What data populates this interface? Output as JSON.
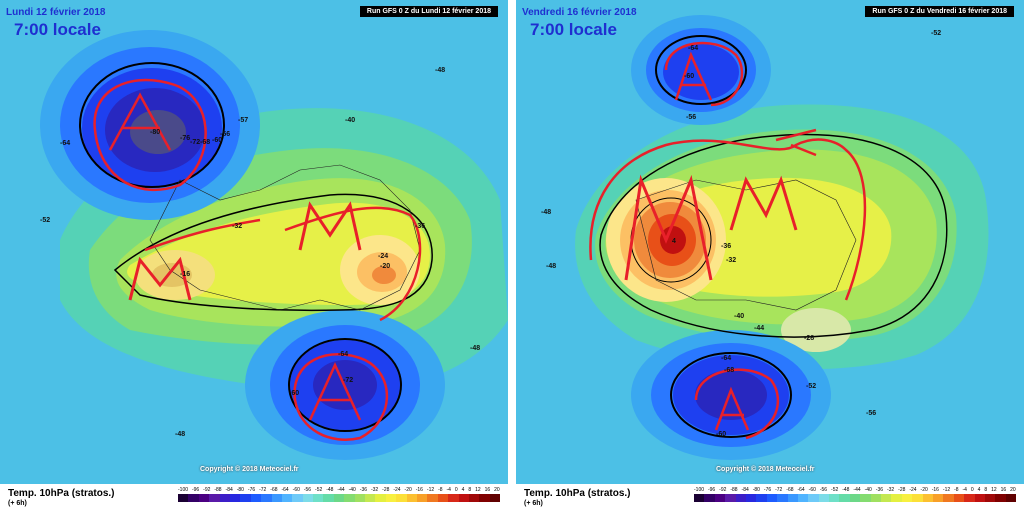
{
  "panels": [
    {
      "date": "Lundi 12 février 2018",
      "hour": "7:00 locale",
      "run": "Run GFS 0 Z du Lundi 12 février 2018",
      "labels": [
        "-80",
        "-76",
        "-72",
        "-68",
        "-60",
        "-64",
        "-57",
        "-56",
        "-52",
        "-48",
        "-48",
        "-48",
        "-40",
        "-36",
        "-32",
        "-24",
        "-20",
        "-16",
        "-64",
        "-72",
        "-60"
      ]
    },
    {
      "date": "Vendredi 16 février 2018",
      "hour": "7:00 locale",
      "run": "Run GFS 0 Z du Vendredi 16 février 2018",
      "labels": [
        "-64",
        "-60",
        "-56",
        "-52",
        "-48",
        "-44",
        "-40",
        "-36",
        "-32",
        "-28",
        "4",
        "-64",
        "-68",
        "-60",
        "-56",
        "-52",
        "-48"
      ]
    }
  ],
  "footer": {
    "param": "Temp. 10hPa (stratos.)",
    "step": "(+ 6h)",
    "copyright": "Copyright © 2018 Meteociel.fr"
  },
  "scale": {
    "ticks": [
      "-100",
      "-96",
      "-92",
      "-88",
      "-84",
      "-80",
      "-76",
      "-72",
      "-68",
      "-64",
      "-60",
      "-56",
      "-52",
      "-48",
      "-44",
      "-40",
      "-36",
      "-32",
      "-28",
      "-24",
      "-20",
      "-16",
      "-12",
      "-8",
      "-4",
      "0",
      "4",
      "8",
      "12",
      "16",
      "20"
    ],
    "colors": [
      "#1a0033",
      "#330066",
      "#4b0082",
      "#5a1aa8",
      "#3c1ec8",
      "#2828e0",
      "#1e40f0",
      "#1e5cff",
      "#2a78ff",
      "#3a98ff",
      "#50b4ff",
      "#6ecaf8",
      "#7cdce8",
      "#6ee0c8",
      "#64dca8",
      "#6cd888",
      "#84dc70",
      "#a0e060",
      "#c4e850",
      "#e4f040",
      "#f8f040",
      "#fce038",
      "#fcc030",
      "#f8a028",
      "#f07820",
      "#e85018",
      "#d82818",
      "#c01010",
      "#a00808",
      "#800000",
      "#600000"
    ]
  }
}
